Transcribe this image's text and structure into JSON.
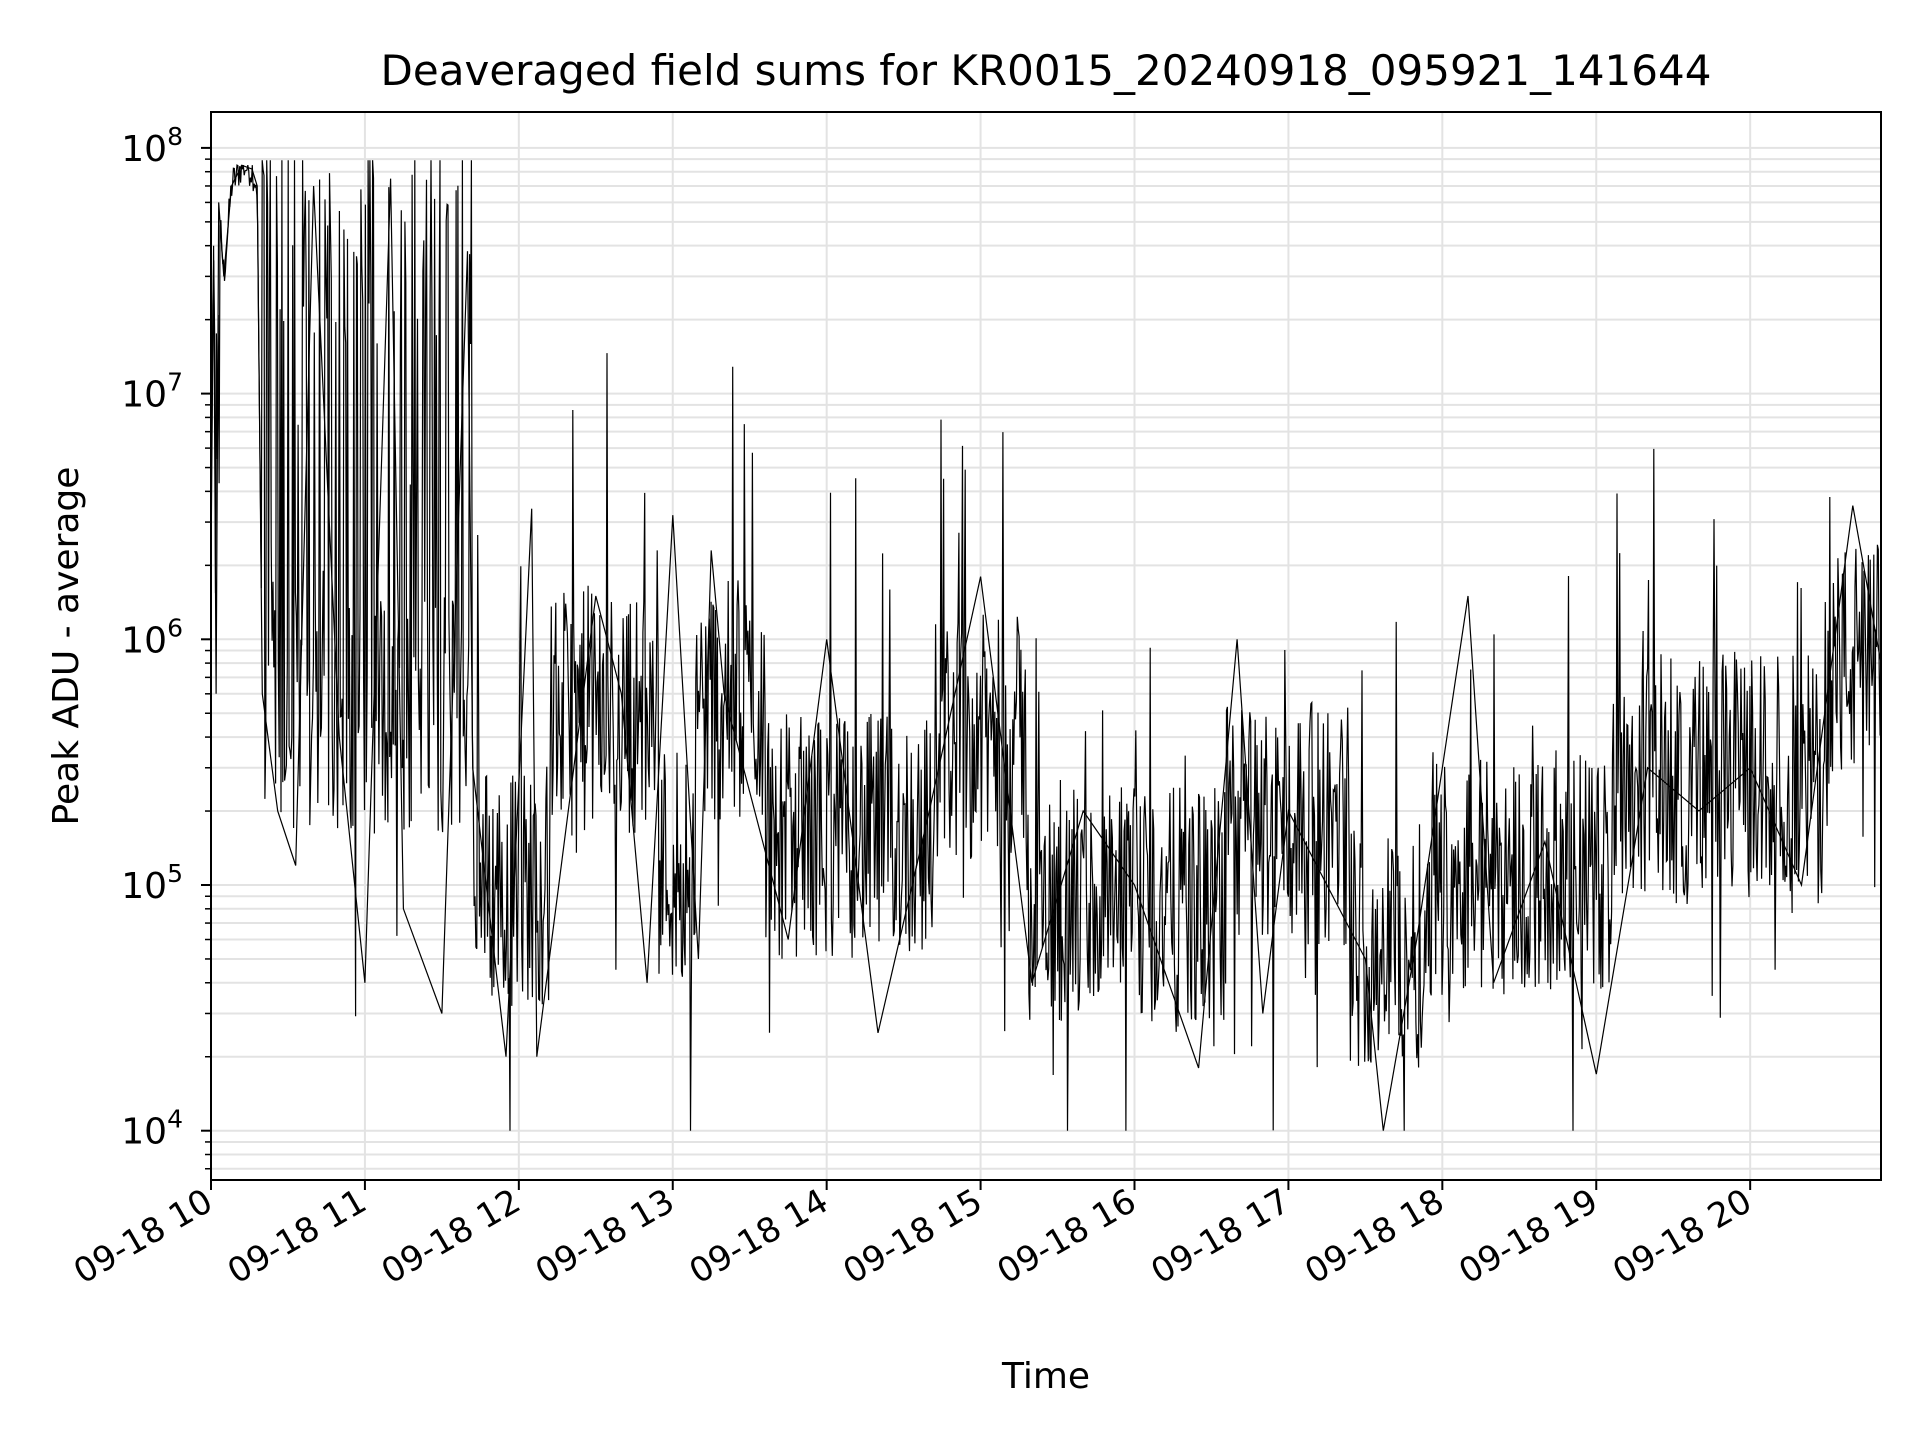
{
  "chart_data": {
    "type": "line",
    "title": "Deaveraged field sums for KR0015_20240918_095921_141644",
    "xlabel": "Time",
    "ylabel": "Peak ADU - average",
    "xlim": [
      "09-18 10:00",
      "09-18 20:51"
    ],
    "ylim": [
      6300,
      140000000
    ],
    "yscale": "log",
    "grid": true,
    "x_tick_labels": [
      "09-18 10",
      "09-18 11",
      "09-18 12",
      "09-18 13",
      "09-18 14",
      "09-18 15",
      "09-18 16",
      "09-18 17",
      "09-18 18",
      "09-18 19",
      "09-18 20"
    ],
    "y_tick_exponents": [
      "4",
      "5",
      "6",
      "7",
      "8"
    ],
    "y_tick_base": "10",
    "series": [
      {
        "color": "#000000",
        "points": [
          [
            "09-18 10:00",
            2000000
          ],
          [
            "09-18 10:01",
            40000000
          ],
          [
            "09-18 10:02",
            600000
          ],
          [
            "09-18 10:03",
            60000000
          ],
          [
            "09-18 10:05",
            30000000
          ],
          [
            "09-18 10:08",
            70000000
          ],
          [
            "09-18 10:12",
            85000000
          ],
          [
            "09-18 10:16",
            82000000
          ],
          [
            "09-18 10:18",
            70000000
          ],
          [
            "09-18 10:20",
            600000
          ],
          [
            "09-18 10:26",
            200000
          ],
          [
            "09-18 10:33",
            120000
          ],
          [
            "09-18 10:40",
            70000000
          ],
          [
            "09-18 10:50",
            400000
          ],
          [
            "09-18 11:00",
            40000
          ],
          [
            "09-18 11:10",
            75000000
          ],
          [
            "09-18 11:15",
            80000
          ],
          [
            "09-18 11:30",
            30000
          ],
          [
            "09-18 11:40",
            38000000
          ],
          [
            "09-18 11:42",
            300000
          ],
          [
            "09-18 11:55",
            20000
          ],
          [
            "09-18 12:05",
            3400000
          ],
          [
            "09-18 12:07",
            20000
          ],
          [
            "09-18 12:30",
            1500000
          ],
          [
            "09-18 12:40",
            600000
          ],
          [
            "09-18 12:50",
            40000
          ],
          [
            "09-18 13:00",
            3200000
          ],
          [
            "09-18 13:10",
            50000
          ],
          [
            "09-18 13:15",
            2300000
          ],
          [
            "09-18 13:20",
            600000
          ],
          [
            "09-18 13:45",
            60000
          ],
          [
            "09-18 14:00",
            1000000
          ],
          [
            "09-18 14:20",
            25000
          ],
          [
            "09-18 14:40",
            200000
          ],
          [
            "09-18 15:00",
            1800000
          ],
          [
            "09-18 15:20",
            40000
          ],
          [
            "09-18 15:40",
            200000
          ],
          [
            "09-18 16:00",
            100000
          ],
          [
            "09-18 16:25",
            18000
          ],
          [
            "09-18 16:40",
            1000000
          ],
          [
            "09-18 16:50",
            30000
          ],
          [
            "09-18 17:00",
            200000
          ],
          [
            "09-18 17:30",
            50000
          ],
          [
            "09-18 17:37",
            10000
          ],
          [
            "09-18 17:50",
            60000
          ],
          [
            "09-18 18:10",
            1500000
          ],
          [
            "09-18 18:20",
            40000
          ],
          [
            "09-18 18:40",
            150000
          ],
          [
            "09-18 19:00",
            17000
          ],
          [
            "09-18 19:20",
            300000
          ],
          [
            "09-18 19:40",
            200000
          ],
          [
            "09-18 20:00",
            300000
          ],
          [
            "09-18 20:20",
            100000
          ],
          [
            "09-18 20:40",
            3500000
          ],
          [
            "09-18 20:51",
            800000
          ]
        ]
      }
    ]
  }
}
